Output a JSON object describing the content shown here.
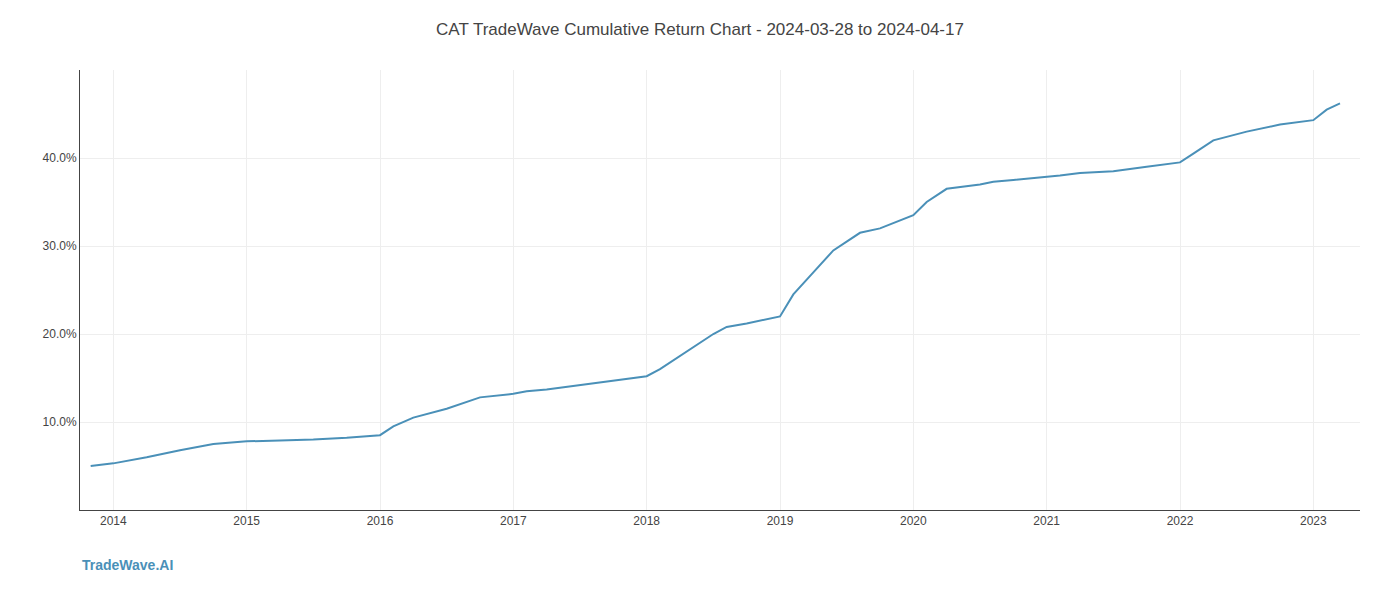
{
  "chart_data": {
    "type": "line",
    "title": "CAT TradeWave Cumulative Return Chart - 2024-03-28 to 2024-04-17",
    "annotations": [
      "TradeWave.AI"
    ],
    "x": [
      2013.83,
      2014.0,
      2014.25,
      2014.5,
      2014.75,
      2015.0,
      2015.25,
      2015.5,
      2015.75,
      2016.0,
      2016.1,
      2016.25,
      2016.5,
      2016.75,
      2017.0,
      2017.1,
      2017.25,
      2017.5,
      2017.75,
      2018.0,
      2018.1,
      2018.25,
      2018.4,
      2018.5,
      2018.6,
      2018.75,
      2019.0,
      2019.1,
      2019.25,
      2019.4,
      2019.5,
      2019.6,
      2019.75,
      2020.0,
      2020.1,
      2020.25,
      2020.5,
      2020.6,
      2020.75,
      2021.0,
      2021.1,
      2021.25,
      2021.5,
      2021.75,
      2022.0,
      2022.1,
      2022.25,
      2022.5,
      2022.75,
      2023.0,
      2023.1,
      2023.2
    ],
    "values": [
      5.0,
      5.3,
      6.0,
      6.8,
      7.5,
      7.8,
      7.9,
      8.0,
      8.2,
      8.5,
      9.5,
      10.5,
      11.5,
      12.8,
      13.2,
      13.5,
      13.7,
      14.2,
      14.7,
      15.2,
      16.0,
      17.5,
      19.0,
      20.0,
      20.8,
      21.2,
      22.0,
      24.5,
      27.0,
      29.5,
      30.5,
      31.5,
      32.0,
      33.5,
      35.0,
      36.5,
      37.0,
      37.3,
      37.5,
      37.8,
      38.0,
      38.3,
      38.5,
      39.0,
      39.5,
      40.5,
      42.0,
      43.0,
      43.8,
      44.3,
      45.5,
      46.2
    ],
    "color": "#4a90b8",
    "xlim": [
      2013.75,
      2023.35
    ],
    "ylim": [
      0,
      50
    ],
    "xticks": [
      2014,
      2015,
      2016,
      2017,
      2018,
      2019,
      2020,
      2021,
      2022,
      2023
    ],
    "yticks": [
      {
        "value": 10.0,
        "label": "10.0%"
      },
      {
        "value": 20.0,
        "label": "20.0%"
      },
      {
        "value": 30.0,
        "label": "30.0%"
      },
      {
        "value": 40.0,
        "label": "40.0%"
      }
    ],
    "grid": true
  }
}
